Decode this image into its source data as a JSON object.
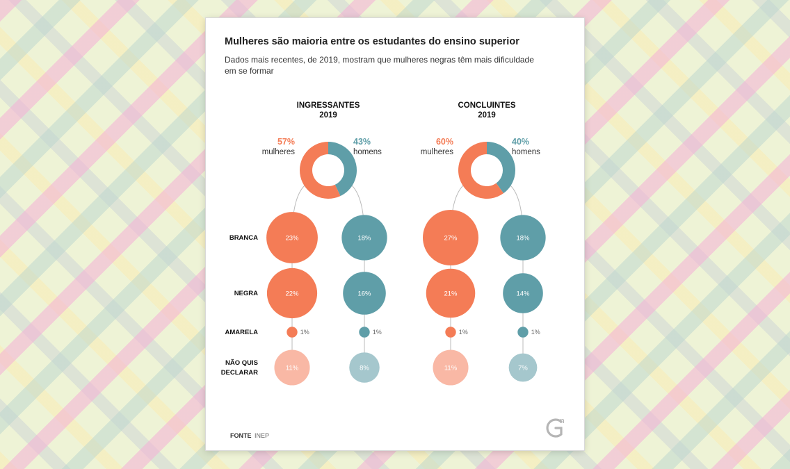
{
  "chart_data": {
    "type": "donut_and_bubbles",
    "title": "Mulheres são maioria entre os estudantes do ensino superior",
    "subtitle_lines": [
      "Dados mais recentes, de 2019, mostram que mulheres negras têm mais dificuldade",
      "em se formar"
    ],
    "groups": [
      {
        "title": "INGRESSANTES",
        "year": "2019",
        "donut": [
          {
            "label": "mulheres",
            "value": 57,
            "display": "57%",
            "color": "#f47c56"
          },
          {
            "label": "homens",
            "value": 43,
            "display": "43%",
            "color": "#5f9ea8"
          }
        ],
        "women": [
          {
            "category": "BRANCA",
            "value": 23,
            "label": "23%"
          },
          {
            "category": "NEGRA",
            "value": 22,
            "label": "22%"
          },
          {
            "category": "AMARELA",
            "value": 1,
            "label": "1%"
          },
          {
            "category": "NÃO QUIS DECLARAR",
            "value": 11,
            "label": "11%"
          }
        ],
        "men": [
          {
            "category": "BRANCA",
            "value": 18,
            "label": "18%"
          },
          {
            "category": "NEGRA",
            "value": 16,
            "label": "16%"
          },
          {
            "category": "AMARELA",
            "value": 1,
            "label": "1%"
          },
          {
            "category": "NÃO QUIS DECLARAR",
            "value": 8,
            "label": "8%"
          }
        ]
      },
      {
        "title": "CONCLUINTES",
        "year": "2019",
        "donut": [
          {
            "label": "mulheres",
            "value": 60,
            "display": "60%",
            "color": "#f47c56"
          },
          {
            "label": "homens",
            "value": 40,
            "display": "40%",
            "color": "#5f9ea8"
          }
        ],
        "women": [
          {
            "category": "BRANCA",
            "value": 27,
            "label": "27%"
          },
          {
            "category": "NEGRA",
            "value": 21,
            "label": "21%"
          },
          {
            "category": "AMARELA",
            "value": 1,
            "label": "1%"
          },
          {
            "category": "NÃO QUIS DECLARAR",
            "value": 11,
            "label": "11%"
          }
        ],
        "men": [
          {
            "category": "BRANCA",
            "value": 18,
            "label": "18%"
          },
          {
            "category": "NEGRA",
            "value": 14,
            "label": "14%"
          },
          {
            "category": "AMARELA",
            "value": 1,
            "label": "1%"
          },
          {
            "category": "NÃO QUIS DECLARAR",
            "value": 7,
            "label": "7%"
          }
        ]
      }
    ],
    "row_labels": [
      [
        "BRANCA"
      ],
      [
        "NEGRA"
      ],
      [
        "AMARELA"
      ],
      [
        "NÃO QUIS",
        "DECLARAR"
      ]
    ],
    "source_label": "FONTE",
    "source_value": "INEP",
    "logo": "Gn",
    "colors": {
      "women": "#f47c56",
      "women_light": "#f9b8a5",
      "men": "#5f9ea8",
      "men_light": "#a5c7cd"
    }
  }
}
